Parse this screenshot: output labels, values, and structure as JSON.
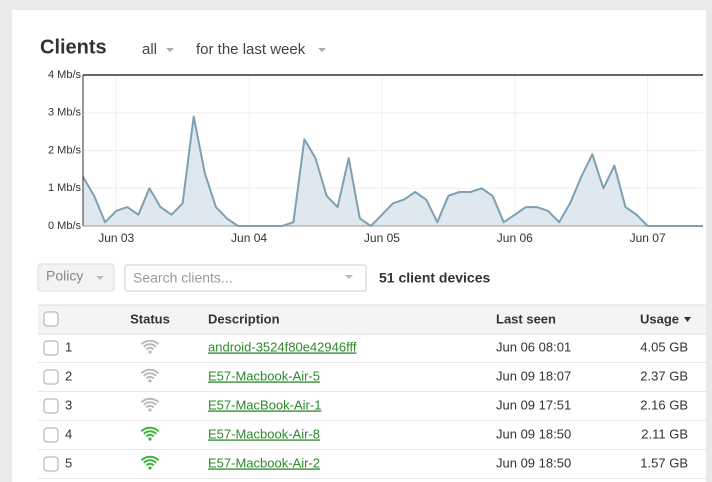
{
  "header": {
    "title": "Clients",
    "filter": "all",
    "period": "for the last week"
  },
  "chart_data": {
    "type": "area",
    "categories": [
      null,
      null,
      null,
      "Jun 03",
      null,
      null,
      null,
      null,
      null,
      null,
      null,
      null,
      null,
      null,
      null,
      "Jun 04",
      null,
      null,
      null,
      null,
      null,
      null,
      null,
      null,
      null,
      null,
      null,
      "Jun 05",
      null,
      null,
      null,
      null,
      null,
      null,
      null,
      null,
      null,
      null,
      null,
      "Jun 06",
      null,
      null,
      null,
      null,
      null,
      null,
      null,
      null,
      null,
      null,
      null,
      "Jun 07",
      null,
      null,
      null,
      null,
      null
    ],
    "values": [
      1.3,
      0.8,
      0.1,
      0.4,
      0.5,
      0.3,
      1.0,
      0.5,
      0.3,
      0.6,
      2.9,
      1.4,
      0.5,
      0.2,
      0,
      0,
      0,
      0,
      0,
      0.1,
      2.3,
      1.8,
      0.8,
      0.5,
      1.8,
      0.2,
      0,
      0.3,
      0.6,
      0.7,
      0.9,
      0.7,
      0.1,
      0.8,
      0.9,
      0.9,
      1.0,
      0.8,
      0.1,
      0.3,
      0.5,
      0.5,
      0.4,
      0.1,
      0.6,
      1.3,
      1.9,
      1.0,
      1.6,
      0.5,
      0.3,
      0,
      0,
      0,
      0,
      0,
      0
    ],
    "color": "#7f9fb3",
    "fill": "#dfe8ef",
    "ylim": [
      0,
      4
    ],
    "yticks": [
      {
        "value": 0,
        "label": "0 Mb/s"
      },
      {
        "value": 1,
        "label": "1 Mb/s"
      },
      {
        "value": 2,
        "label": "2 Mb/s"
      },
      {
        "value": 3,
        "label": "3 Mb/s"
      },
      {
        "value": 4,
        "label": "4 Mb/s"
      }
    ],
    "grid": true
  },
  "toolbar": {
    "policy": "Policy",
    "search_placeholder": "Search clients...",
    "count": "51 client devices"
  },
  "table": {
    "columns": [
      "Status",
      "Description",
      "Last seen",
      "Usage"
    ],
    "rows": [
      {
        "index": "1",
        "wifi_color": "#bbbbbb",
        "description": "android-3524f80e42946fff",
        "last_seen": "Jun 06 08:01",
        "usage": "4.05 GB"
      },
      {
        "index": "2",
        "wifi_color": "#bbbbbb",
        "description": "E57-Macbook-Air-5",
        "last_seen": "Jun 09 18:07",
        "usage": "2.37 GB"
      },
      {
        "index": "3",
        "wifi_color": "#bbbbbb",
        "description": "E57-MacBook-Air-1",
        "last_seen": "Jun 09 17:51",
        "usage": "2.16 GB"
      },
      {
        "index": "4",
        "wifi_color": "#3fb53f",
        "description": "E57-Macbook-Air-8",
        "last_seen": "Jun 09 18:50",
        "usage": "2.11 GB"
      },
      {
        "index": "5",
        "wifi_color": "#3fb53f",
        "description": "E57-Macbook-Air-2",
        "last_seen": "Jun 09 18:50",
        "usage": "1.57 GB"
      }
    ]
  }
}
